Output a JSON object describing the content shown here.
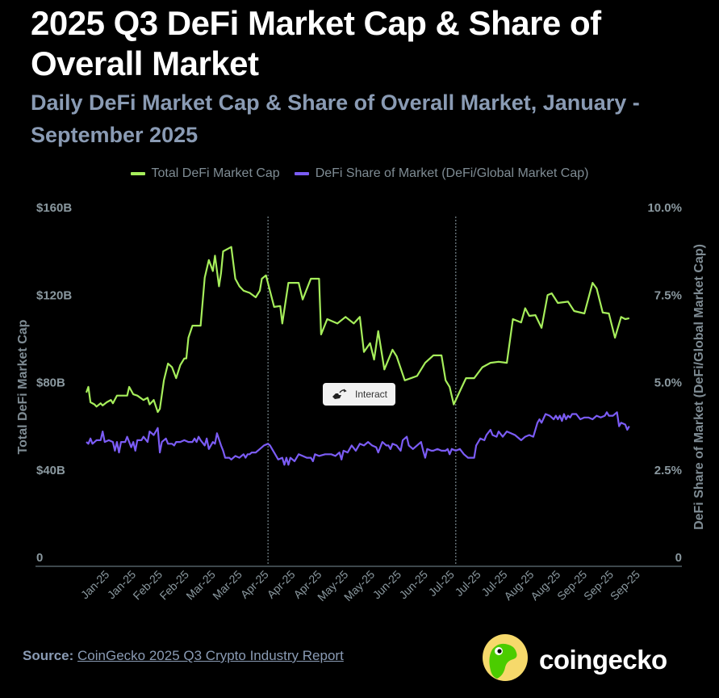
{
  "header": {
    "title": "2025 Q3 DeFi Market Cap & Share of Overall Market",
    "subtitle": "Daily DeFi Market Cap & Share of Overall Market, January - September 2025"
  },
  "legend": [
    {
      "label": "Total DeFi Market Cap",
      "color": "#a6ee5b"
    },
    {
      "label": "DeFi Share of Market (DeFi/Global Market Cap)",
      "color": "#7b5cf5"
    }
  ],
  "interact_button": {
    "label": "Interact",
    "icon": "hand-pointer-icon"
  },
  "footer": {
    "source_label": "Source:",
    "source_link": "CoinGecko 2025 Q3 Crypto Industry Report",
    "brand": "coingecko",
    "logo_icon": "gecko-logo-icon"
  },
  "chart_data": {
    "type": "line",
    "title": "Daily DeFi Market Cap & Share of Overall Market",
    "xlabel": "",
    "ylabel": "Total DeFi Market Cap",
    "y2label": "DeFi Share of Market (DeFi/Global Market Cap)",
    "ylim": [
      0,
      160
    ],
    "y2lim": [
      0,
      10
    ],
    "yticks": [
      {
        "value": 0,
        "label": "0"
      },
      {
        "value": 40,
        "label": "$40B"
      },
      {
        "value": 80,
        "label": "$80B"
      },
      {
        "value": 120,
        "label": "$120B"
      },
      {
        "value": 160,
        "label": "$160B"
      }
    ],
    "y2ticks": [
      {
        "value": 0,
        "label": "0"
      },
      {
        "value": 2.5,
        "label": "2.5%"
      },
      {
        "value": 5,
        "label": "5.0%"
      },
      {
        "value": 7.5,
        "label": "7.5%"
      },
      {
        "value": 10,
        "label": "10.0%"
      }
    ],
    "xlim_days": [
      0,
      272
    ],
    "xticks": [
      {
        "day": 10,
        "label": "Jan-25"
      },
      {
        "day": 23,
        "label": "Jan-25"
      },
      {
        "day": 36,
        "label": "Feb-25"
      },
      {
        "day": 49,
        "label": "Feb-25"
      },
      {
        "day": 62,
        "label": "Mar-25"
      },
      {
        "day": 75,
        "label": "Mar-25"
      },
      {
        "day": 88,
        "label": "Apr-25"
      },
      {
        "day": 101,
        "label": "Apr-25"
      },
      {
        "day": 114,
        "label": "Apr-25"
      },
      {
        "day": 127,
        "label": "May-25"
      },
      {
        "day": 140,
        "label": "May-25"
      },
      {
        "day": 153,
        "label": "Jun-25"
      },
      {
        "day": 166,
        "label": "Jun-25"
      },
      {
        "day": 179,
        "label": "Jul-25"
      },
      {
        "day": 192,
        "label": "Jul-25"
      },
      {
        "day": 205,
        "label": "Jul-25"
      },
      {
        "day": 218,
        "label": "Aug-25"
      },
      {
        "day": 231,
        "label": "Aug-25"
      },
      {
        "day": 244,
        "label": "Sep-25"
      },
      {
        "day": 257,
        "label": "Sep-25"
      },
      {
        "day": 270,
        "label": "Sep-25"
      }
    ],
    "reference_lines_days": [
      89,
      181
    ],
    "grid": false,
    "legend_position": "top-center",
    "series": [
      {
        "name": "Total DeFi Market Cap",
        "axis": "left",
        "unit": "USD billions",
        "color": "#a6ee5b",
        "points": [
          [
            0,
            75.4
          ],
          [
            1,
            78
          ],
          [
            2,
            71
          ],
          [
            4,
            70
          ],
          [
            5,
            69
          ],
          [
            7,
            70.5
          ],
          [
            8,
            69.5
          ],
          [
            10,
            71
          ],
          [
            12,
            72
          ],
          [
            13,
            70.5
          ],
          [
            15,
            74
          ],
          [
            18,
            74
          ],
          [
            20,
            74
          ],
          [
            21,
            78
          ],
          [
            23,
            74.6
          ],
          [
            25,
            74
          ],
          [
            28,
            72
          ],
          [
            30,
            73
          ],
          [
            31,
            70
          ],
          [
            33,
            72
          ],
          [
            35,
            66.5
          ],
          [
            36,
            68
          ],
          [
            38,
            81
          ],
          [
            40,
            88.7
          ],
          [
            42,
            87
          ],
          [
            44,
            82
          ],
          [
            46,
            88
          ],
          [
            48,
            91
          ],
          [
            49,
            91
          ],
          [
            50,
            100.5
          ],
          [
            52,
            106
          ],
          [
            56,
            106
          ],
          [
            58,
            128
          ],
          [
            60,
            136
          ],
          [
            62,
            131
          ],
          [
            63,
            138
          ],
          [
            65,
            124
          ],
          [
            66,
            130
          ],
          [
            67,
            140
          ],
          [
            71,
            142
          ],
          [
            73,
            127.5
          ],
          [
            75,
            124
          ],
          [
            77,
            122
          ],
          [
            80,
            121
          ],
          [
            83,
            119
          ],
          [
            85,
            122
          ],
          [
            86,
            127.5
          ],
          [
            88,
            129
          ],
          [
            92,
            114.6
          ],
          [
            95,
            115
          ],
          [
            96,
            107
          ],
          [
            99,
            125.6
          ],
          [
            104,
            125.6
          ],
          [
            106,
            118
          ],
          [
            110,
            127.5
          ],
          [
            114,
            127.5
          ],
          [
            115,
            102
          ],
          [
            118,
            109
          ],
          [
            123,
            107
          ],
          [
            127,
            110
          ],
          [
            131,
            107
          ],
          [
            134,
            110
          ],
          [
            136,
            94
          ],
          [
            139,
            98
          ],
          [
            141,
            90.5
          ],
          [
            143,
            103.5
          ],
          [
            146,
            86
          ],
          [
            150,
            95
          ],
          [
            152,
            92
          ],
          [
            156,
            81
          ],
          [
            162,
            83
          ],
          [
            166,
            89
          ],
          [
            170,
            92.4
          ],
          [
            174,
            92.4
          ],
          [
            176,
            81
          ],
          [
            178,
            78
          ],
          [
            180,
            70
          ],
          [
            184,
            78
          ],
          [
            186,
            82
          ],
          [
            190,
            82
          ],
          [
            194,
            87
          ],
          [
            198,
            89
          ],
          [
            202,
            89.5
          ],
          [
            206,
            89
          ],
          [
            209,
            109
          ],
          [
            213,
            107.5
          ],
          [
            215,
            114
          ],
          [
            217,
            110.5
          ],
          [
            220,
            110.8
          ],
          [
            223,
            105
          ],
          [
            226,
            120
          ],
          [
            228,
            120.8
          ],
          [
            231,
            116.4
          ],
          [
            236,
            117
          ],
          [
            239,
            112.7
          ],
          [
            244,
            111.6
          ],
          [
            248,
            125.6
          ],
          [
            250,
            123
          ],
          [
            253,
            112
          ],
          [
            256,
            111.6
          ],
          [
            259,
            100.5
          ],
          [
            262,
            110
          ],
          [
            264,
            109
          ],
          [
            266,
            109.4
          ]
        ]
      },
      {
        "name": "DeFi Share of Market (DeFi/Global Market Cap)",
        "axis": "right",
        "unit": "percent",
        "color": "#7b5cf5",
        "points": [
          [
            0,
            3.3
          ],
          [
            1,
            3.25
          ],
          [
            2,
            3.4
          ],
          [
            3,
            3.25
          ],
          [
            5,
            3.35
          ],
          [
            7,
            3.35
          ],
          [
            8,
            3.6
          ],
          [
            9,
            3.3
          ],
          [
            11,
            3.35
          ],
          [
            13,
            3.3
          ],
          [
            14,
            3.05
          ],
          [
            15,
            3.3
          ],
          [
            16,
            3.0
          ],
          [
            17,
            3.3
          ],
          [
            19,
            3.3
          ],
          [
            20,
            3.45
          ],
          [
            22,
            3.15
          ],
          [
            23,
            3.3
          ],
          [
            24,
            3.05
          ],
          [
            25,
            3.35
          ],
          [
            27,
            3.35
          ],
          [
            28,
            3.45
          ],
          [
            30,
            3.3
          ],
          [
            31,
            3.6
          ],
          [
            33,
            3.5
          ],
          [
            35,
            3.7
          ],
          [
            36,
            3.0
          ],
          [
            37,
            3.3
          ],
          [
            39,
            3.4
          ],
          [
            40,
            3.25
          ],
          [
            42,
            3.25
          ],
          [
            43,
            3.2
          ],
          [
            44,
            3.3
          ],
          [
            46,
            3.3
          ],
          [
            48,
            3.35
          ],
          [
            50,
            3.3
          ],
          [
            52,
            3.3
          ],
          [
            53,
            3.4
          ],
          [
            54,
            3.3
          ],
          [
            55,
            3.45
          ],
          [
            56,
            3.35
          ],
          [
            58,
            3.2
          ],
          [
            59,
            3.4
          ],
          [
            60,
            3.1
          ],
          [
            62,
            3.3
          ],
          [
            63,
            3.25
          ],
          [
            64,
            3.55
          ],
          [
            66,
            3.2
          ],
          [
            67,
            3.05
          ],
          [
            68,
            2.85
          ],
          [
            70,
            2.85
          ],
          [
            71,
            2.8
          ],
          [
            73,
            2.9
          ],
          [
            75,
            2.85
          ],
          [
            76,
            2.9
          ],
          [
            77,
            2.95
          ],
          [
            78,
            2.85
          ],
          [
            79,
            2.95
          ],
          [
            80,
            2.95
          ],
          [
            81,
            3.0
          ],
          [
            83,
            3.0
          ],
          [
            85,
            3.1
          ],
          [
            87,
            3.2
          ],
          [
            89,
            3.25
          ],
          [
            90,
            3.2
          ],
          [
            92,
            3.0
          ],
          [
            94,
            2.8
          ],
          [
            96,
            2.85
          ],
          [
            97,
            2.65
          ],
          [
            98,
            2.85
          ],
          [
            99,
            2.65
          ],
          [
            100,
            2.85
          ],
          [
            102,
            2.75
          ],
          [
            104,
            2.95
          ],
          [
            106,
            2.9
          ],
          [
            108,
            2.85
          ],
          [
            110,
            2.85
          ],
          [
            111,
            2.75
          ],
          [
            112,
            2.95
          ],
          [
            114,
            2.9
          ],
          [
            117,
            2.95
          ],
          [
            120,
            2.95
          ],
          [
            122,
            2.9
          ],
          [
            124,
            3.0
          ],
          [
            125,
            2.8
          ],
          [
            126,
            3.05
          ],
          [
            128,
            3.0
          ],
          [
            130,
            3.2
          ],
          [
            132,
            3.05
          ],
          [
            134,
            3.25
          ],
          [
            136,
            3.2
          ],
          [
            138,
            3.3
          ],
          [
            140,
            3.2
          ],
          [
            142,
            3.15
          ],
          [
            143,
            3.0
          ],
          [
            145,
            3.3
          ],
          [
            147,
            3.2
          ],
          [
            148,
            3.2
          ],
          [
            149,
            3.1
          ],
          [
            150,
            3.25
          ],
          [
            152,
            3.2
          ],
          [
            154,
            3.05
          ],
          [
            155,
            3.35
          ],
          [
            157,
            3.45
          ],
          [
            158,
            3.2
          ],
          [
            160,
            3.1
          ],
          [
            162,
            3.2
          ],
          [
            164,
            3.3
          ],
          [
            165,
            3.05
          ],
          [
            166,
            2.85
          ],
          [
            167,
            3.1
          ],
          [
            169,
            3.05
          ],
          [
            170,
            3.05
          ],
          [
            172,
            3.1
          ],
          [
            174,
            3.05
          ],
          [
            176,
            3.05
          ],
          [
            177,
            3.1
          ],
          [
            178,
            2.95
          ],
          [
            179,
            3.1
          ],
          [
            181,
            3.05
          ],
          [
            183,
            3.1
          ],
          [
            185,
            2.95
          ],
          [
            187,
            2.85
          ],
          [
            190,
            2.85
          ],
          [
            191,
            3.2
          ],
          [
            193,
            3.4
          ],
          [
            195,
            3.35
          ],
          [
            196,
            3.5
          ],
          [
            198,
            3.65
          ],
          [
            199,
            3.5
          ],
          [
            201,
            3.45
          ],
          [
            202,
            3.6
          ],
          [
            204,
            3.45
          ],
          [
            206,
            3.6
          ],
          [
            208,
            3.55
          ],
          [
            210,
            3.5
          ],
          [
            211,
            3.45
          ],
          [
            213,
            3.35
          ],
          [
            215,
            3.45
          ],
          [
            217,
            3.5
          ],
          [
            219,
            3.45
          ],
          [
            221,
            3.85
          ],
          [
            222,
            3.95
          ],
          [
            223,
            3.85
          ],
          [
            225,
            4.1
          ],
          [
            227,
            4.05
          ],
          [
            229,
            3.95
          ],
          [
            230,
            4.05
          ],
          [
            231,
            3.95
          ],
          [
            232,
            4.05
          ],
          [
            233,
            3.9
          ],
          [
            234,
            4.1
          ],
          [
            235,
            3.95
          ],
          [
            236,
            4.05
          ],
          [
            237,
            4.0
          ],
          [
            238,
            4.1
          ],
          [
            240,
            4.1
          ],
          [
            242,
            3.95
          ],
          [
            244,
            4.0
          ],
          [
            246,
            4.0
          ],
          [
            248,
            3.95
          ],
          [
            250,
            4.05
          ],
          [
            252,
            4.0
          ],
          [
            254,
            4.05
          ],
          [
            255,
            4.15
          ],
          [
            256,
            4.05
          ],
          [
            258,
            4.05
          ],
          [
            260,
            4.15
          ],
          [
            261,
            3.75
          ],
          [
            262,
            3.85
          ],
          [
            264,
            3.8
          ],
          [
            265,
            3.65
          ],
          [
            266,
            3.75
          ]
        ]
      }
    ]
  }
}
